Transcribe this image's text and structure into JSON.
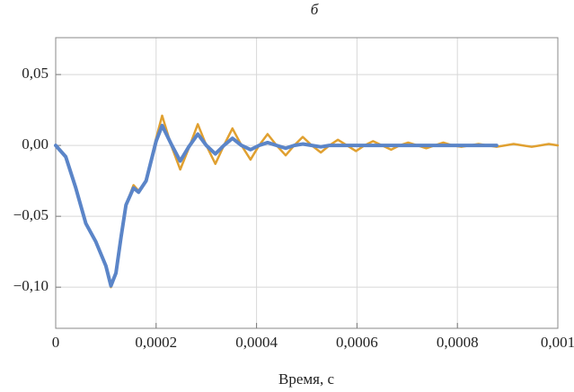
{
  "chart_data": {
    "type": "line",
    "title": "б",
    "x_label": "Время, с",
    "xlim": [
      0,
      0.001
    ],
    "xticks": [
      0,
      {
        "value": 0.0002,
        "label": "0,0002"
      },
      {
        "value": 0.0004,
        "label": "0,0004"
      },
      {
        "value": 0.0006,
        "label": "0,0006"
      },
      {
        "value": 0.0008,
        "label": "0,0008"
      },
      {
        "value": 0.001,
        "label": "0,001"
      }
    ],
    "ylim": [
      -0.129,
      0.076
    ],
    "yticks": [
      {
        "value": 0.05,
        "label": "0,05"
      },
      {
        "value": 0,
        "label": "0,00"
      },
      {
        "value": -0.05,
        "label": "−0,05"
      },
      {
        "value": -0.1,
        "label": "−0,10"
      }
    ],
    "grid": true,
    "x": [
      0,
      2e-05,
      4e-05,
      6e-05,
      8e-05,
      0.0001,
      0.00011,
      0.00012,
      0.00013,
      0.00014,
      0.000155,
      0.000165,
      0.00018,
      0.0002,
      0.000212,
      0.00023,
      0.000248,
      0.000265,
      0.000283,
      0.0003,
      0.000318,
      0.000335,
      0.000352,
      0.00037,
      0.000388,
      0.000405,
      0.000422,
      0.00044,
      0.000458,
      0.000475,
      0.000492,
      0.00051,
      0.000528,
      0.000545,
      0.000562,
      0.00058,
      0.000598,
      0.000615,
      0.000632,
      0.00065,
      0.000668,
      0.000685,
      0.000702,
      0.00072,
      0.000738,
      0.000755,
      0.000772,
      0.00079,
      0.000808,
      0.000825,
      0.000842,
      0.00086,
      0.000878,
      0.000895,
      0.000912,
      0.00093,
      0.000948,
      0.000965,
      0.000982,
      0.001
    ],
    "series": [
      {
        "color": "#e0a030",
        "values": [
          0,
          -0.008,
          -0.03,
          -0.055,
          -0.068,
          -0.085,
          -0.1,
          -0.09,
          -0.065,
          -0.042,
          -0.028,
          -0.032,
          -0.025,
          0.005,
          0.021,
          0,
          -0.017,
          -0.002,
          0.015,
          0,
          -0.013,
          0,
          0.012,
          0,
          -0.01,
          0,
          0.008,
          0,
          -0.007,
          0,
          0.006,
          0,
          -0.005,
          0,
          0.004,
          0,
          -0.004,
          0,
          0.003,
          0,
          -0.003,
          0,
          0.002,
          0,
          -0.002,
          0,
          0.002,
          0,
          -0.001,
          0,
          0.001,
          0,
          -0.001,
          0,
          0.001,
          0,
          -0.001,
          0,
          0.001,
          0
        ]
      },
      {
        "color": "#5b85c8",
        "values": [
          0,
          -0.008,
          -0.03,
          -0.055,
          -0.068,
          -0.085,
          -0.099,
          -0.09,
          -0.065,
          -0.042,
          -0.03,
          -0.033,
          -0.025,
          0.003,
          0.014,
          0.001,
          -0.011,
          -0.001,
          0.008,
          0,
          -0.006,
          0,
          0.005,
          0,
          -0.003,
          0,
          0.002,
          0,
          -0.002,
          0,
          0.001,
          0,
          -0.001,
          0,
          0,
          0,
          0,
          0,
          0,
          0,
          0,
          0,
          0,
          0,
          0,
          0,
          0,
          0,
          0,
          0,
          0,
          0,
          0,
          null,
          null,
          null,
          null,
          null,
          null,
          null
        ]
      }
    ]
  }
}
